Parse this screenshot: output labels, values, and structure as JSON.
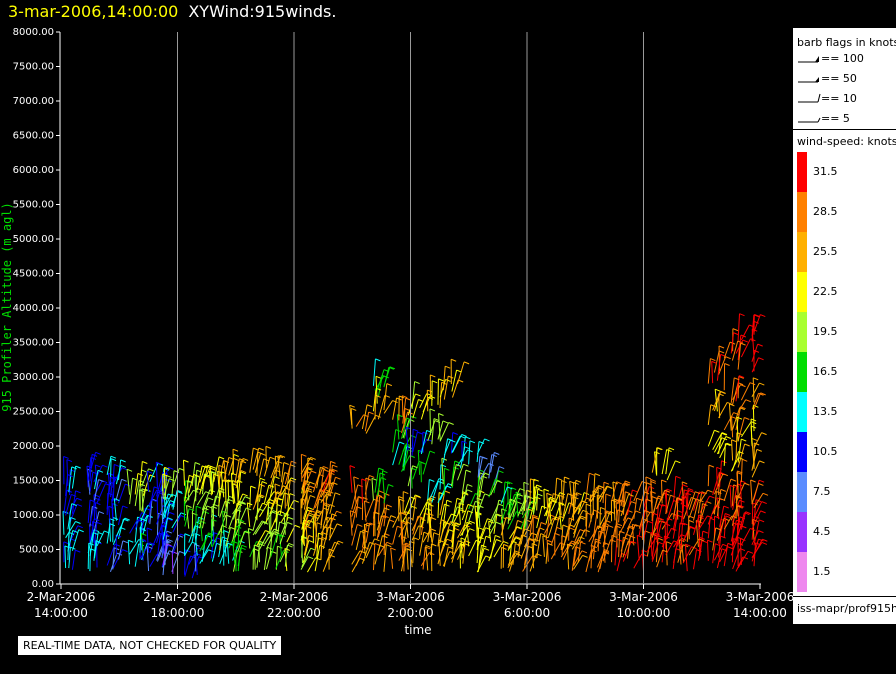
{
  "header": {
    "timestamp": "3-mar-2006,14:00:00",
    "product": "XYWind:915winds."
  },
  "footer_note": "REAL-TIME DATA, NOT CHECKED FOR QUALITY",
  "legend": {
    "barb_title": "barb flags in knots",
    "barb_items": [
      {
        "label": "== 100"
      },
      {
        "label": "== 50"
      },
      {
        "label": "== 10"
      },
      {
        "label": "== 5"
      }
    ],
    "speed_title": "wind-speed: knots",
    "source": "iss-mapr/prof915h"
  },
  "chart_data": {
    "type": "scatter",
    "mark": "wind-barb",
    "ylabel": "915 Profiler Altitude (m agl)",
    "xlabel": "time",
    "ylim": [
      0,
      8000
    ],
    "y_ticks": [
      "0.00",
      "500.00",
      "1000.00",
      "1500.00",
      "2000.00",
      "2500.00",
      "3000.00",
      "3500.00",
      "4000.00",
      "4500.00",
      "5000.00",
      "5500.00",
      "6000.00",
      "6500.00",
      "7000.00",
      "7500.00",
      "8000.00"
    ],
    "x_range_hours": [
      0,
      24
    ],
    "x_ticks": [
      {
        "h": 0,
        "date": "2-Mar-2006",
        "time": "14:00:00"
      },
      {
        "h": 4,
        "date": "2-Mar-2006",
        "time": "18:00:00"
      },
      {
        "h": 8,
        "date": "2-Mar-2006",
        "time": "22:00:00"
      },
      {
        "h": 12,
        "date": "3-Mar-2006",
        "time": "2:00:00"
      },
      {
        "h": 16,
        "date": "3-Mar-2006",
        "time": "6:00:00"
      },
      {
        "h": 20,
        "date": "3-Mar-2006",
        "time": "10:00:00"
      },
      {
        "h": 24,
        "date": "3-Mar-2006",
        "time": "14:00:00"
      }
    ],
    "grid": "vertical",
    "color_scale": {
      "labels": [
        "31.5",
        "28.5",
        "25.5",
        "22.5",
        "19.5",
        "16.5",
        "13.5",
        "10.5",
        "7.5",
        "4.5",
        "1.5"
      ],
      "colors": [
        "#ff0000",
        "#ff8000",
        "#ffb000",
        "#ffff00",
        "#a8ff30",
        "#00dd00",
        "#00ffff",
        "#0000ff",
        "#5b8cff",
        "#9933ff",
        "#ee88ee"
      ]
    },
    "wind_profile": [
      {
        "t": 0.3,
        "alts": [
          300,
          600,
          900,
          1400
        ],
        "speeds": [
          12,
          13,
          11,
          12
        ]
      },
      {
        "t": 1.0,
        "alts": [
          300,
          500,
          800,
          1300,
          1500
        ],
        "speeds": [
          13,
          12,
          10,
          9,
          11
        ]
      },
      {
        "t": 1.8,
        "alts": [
          300,
          600,
          900,
          1200,
          1500
        ],
        "speeds": [
          9,
          12,
          11,
          10,
          13
        ]
      },
      {
        "t": 2.6,
        "alts": [
          300,
          500,
          800,
          1100,
          1400
        ],
        "speeds": [
          13,
          14,
          12,
          20,
          22
        ]
      },
      {
        "t": 3.2,
        "alts": [
          300,
          500,
          800,
          1100,
          1400
        ],
        "speeds": [
          8,
          10,
          9,
          11,
          12
        ]
      },
      {
        "t": 3.8,
        "alts": [
          200,
          400,
          700,
          1000,
          1300
        ],
        "speeds": [
          7,
          9,
          12,
          14,
          20
        ]
      },
      {
        "t": 4.4,
        "alts": [
          200,
          500,
          800,
          1100,
          1300
        ],
        "speeds": [
          10,
          14,
          17,
          19,
          21
        ]
      },
      {
        "t": 5.0,
        "alts": [
          300,
          600,
          900,
          1200,
          1400
        ],
        "speeds": [
          12,
          16,
          19,
          21,
          23
        ]
      },
      {
        "t": 5.6,
        "alts": [
          300,
          600,
          900,
          1200,
          1500
        ],
        "speeds": [
          14,
          18,
          19,
          22,
          25
        ]
      },
      {
        "t": 6.2,
        "alts": [
          300,
          600,
          900,
          1200,
          1500
        ],
        "speeds": [
          17,
          18,
          20,
          22,
          24
        ]
      },
      {
        "t": 6.8,
        "alts": [
          300,
          600,
          900,
          1200,
          1600
        ],
        "speeds": [
          19,
          20,
          22,
          24,
          26
        ]
      },
      {
        "t": 7.4,
        "alts": [
          300,
          600,
          900,
          1200,
          1500
        ],
        "speeds": [
          18,
          21,
          23,
          25,
          27
        ]
      },
      {
        "t": 8.0,
        "alts": [
          300,
          600,
          900,
          1200,
          1500
        ],
        "speeds": [
          20,
          22,
          24,
          25,
          27
        ]
      },
      {
        "t": 8.6,
        "alts": [
          300,
          600,
          900,
          1200,
          1400
        ],
        "speeds": [
          23,
          25,
          26,
          27,
          28
        ]
      },
      {
        "t": 9.2,
        "alts": [
          300,
          600,
          900,
          1200,
          1400
        ],
        "speeds": [
          25,
          26,
          27,
          28,
          29
        ]
      },
      {
        "t": 10.2,
        "alts": [
          300,
          600,
          900,
          1200,
          2300
        ],
        "speeds": [
          26,
          27,
          28,
          29,
          27
        ]
      },
      {
        "t": 11.0,
        "alts": [
          300,
          600,
          900,
          1200,
          2500,
          2800
        ],
        "speeds": [
          27,
          28,
          27,
          18,
          24,
          15
        ]
      },
      {
        "t": 11.6,
        "alts": [
          300,
          600,
          900,
          1700,
          2000,
          2300
        ],
        "speeds": [
          28,
          27,
          25,
          15,
          17,
          26
        ]
      },
      {
        "t": 12.2,
        "alts": [
          300,
          600,
          900,
          1500,
          1900,
          2500
        ],
        "speeds": [
          27,
          26,
          24,
          17,
          12,
          22
        ]
      },
      {
        "t": 12.8,
        "alts": [
          300,
          600,
          900,
          1300,
          2100,
          2600
        ],
        "speeds": [
          26,
          25,
          23,
          14,
          20,
          24
        ]
      },
      {
        "t": 13.4,
        "alts": [
          300,
          600,
          900,
          1400,
          1800,
          2800
        ],
        "speeds": [
          25,
          24,
          22,
          18,
          13,
          25
        ]
      },
      {
        "t": 14.0,
        "alts": [
          300,
          600,
          900,
          1200,
          1800
        ],
        "speeds": [
          24,
          23,
          21,
          19,
          12
        ]
      },
      {
        "t": 14.6,
        "alts": [
          300,
          600,
          900,
          1200,
          1500
        ],
        "speeds": [
          23,
          22,
          20,
          17,
          7
        ]
      },
      {
        "t": 15.2,
        "alts": [
          300,
          600,
          900,
          1100
        ],
        "speeds": [
          25,
          24,
          19,
          16
        ]
      },
      {
        "t": 15.8,
        "alts": [
          300,
          600,
          900,
          1100
        ],
        "speeds": [
          26,
          25,
          18,
          20
        ]
      },
      {
        "t": 16.4,
        "alts": [
          300,
          600,
          900,
          1100
        ],
        "speeds": [
          26,
          27,
          22,
          23
        ]
      },
      {
        "t": 17.0,
        "alts": [
          300,
          600,
          900,
          1100
        ],
        "speeds": [
          27,
          26,
          24,
          25
        ]
      },
      {
        "t": 17.6,
        "alts": [
          300,
          600,
          900,
          1100
        ],
        "speeds": [
          28,
          27,
          25,
          26
        ]
      },
      {
        "t": 18.2,
        "alts": [
          300,
          600,
          900,
          1100
        ],
        "speeds": [
          28,
          28,
          26,
          27
        ]
      },
      {
        "t": 18.8,
        "alts": [
          300,
          600,
          900,
          1100
        ],
        "speeds": [
          29,
          28,
          27,
          28
        ]
      },
      {
        "t": 19.4,
        "alts": [
          300,
          600,
          900,
          1100
        ],
        "speeds": [
          30,
          29,
          28,
          29
        ]
      },
      {
        "t": 20.0,
        "alts": [
          300,
          600,
          900,
          1100
        ],
        "speeds": [
          31,
          30,
          29,
          29
        ]
      },
      {
        "t": 20.6,
        "alts": [
          300,
          600,
          900,
          1100,
          1600
        ],
        "speeds": [
          31,
          31,
          30,
          29,
          24
        ]
      },
      {
        "t": 21.2,
        "alts": [
          300,
          600,
          900,
          1100
        ],
        "speeds": [
          31,
          31,
          30,
          30
        ]
      },
      {
        "t": 21.8,
        "alts": [
          300,
          600,
          900,
          1100
        ],
        "speeds": [
          31,
          30,
          30,
          31
        ]
      },
      {
        "t": 22.4,
        "alts": [
          300,
          600,
          900,
          1300,
          1900,
          2400,
          3000
        ],
        "speeds": [
          32,
          31,
          31,
          30,
          22,
          25,
          30
        ]
      },
      {
        "t": 23.0,
        "alts": [
          300,
          600,
          900,
          1200,
          1700,
          2200,
          2700,
          3300
        ],
        "speeds": [
          32,
          31,
          30,
          29,
          24,
          27,
          29,
          31
        ]
      },
      {
        "t": 23.5,
        "alts": [
          300,
          600,
          900,
          1200,
          1600,
          2100,
          2600,
          3200,
          3600
        ],
        "speeds": [
          32,
          31,
          31,
          30,
          26,
          23,
          28,
          31,
          32
        ]
      }
    ]
  }
}
